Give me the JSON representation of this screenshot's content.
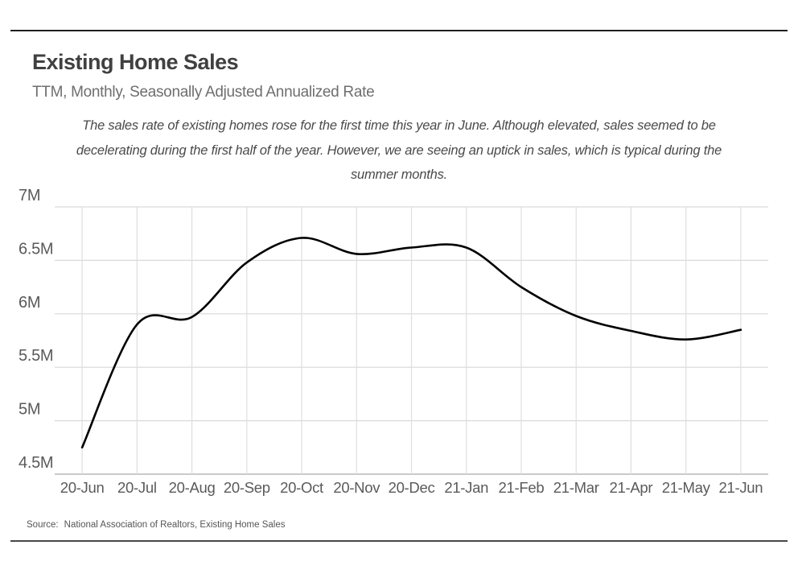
{
  "header": {
    "title": "Existing Home Sales",
    "subtitle": "TTM, Monthly, Seasonally Adjusted Annualized Rate",
    "annotation": "The sales rate of existing homes rose for the first time this year in June. Although elevated, sales seemed to be decelerating during the first half of the year. However, we are seeing an uptick in sales, which is typical during the summer months."
  },
  "chart_data": {
    "type": "line",
    "title": "Existing Home Sales",
    "subtitle": "TTM, Monthly, Seasonally Adjusted Annualized Rate",
    "categories": [
      "20-Jun",
      "20-Jul",
      "20-Aug",
      "20-Sep",
      "20-Oct",
      "20-Nov",
      "20-Dec",
      "21-Jan",
      "21-Feb",
      "21-Mar",
      "21-Apr",
      "21-May",
      "21-Jun"
    ],
    "series": [
      {
        "name": "Existing Home Sales (millions, SAAR)",
        "values": [
          4.75,
          5.9,
          5.97,
          6.48,
          6.71,
          6.56,
          6.62,
          6.62,
          6.25,
          5.98,
          5.84,
          5.76,
          5.85
        ]
      }
    ],
    "ylim": [
      4.5,
      7.0
    ],
    "y_ticks": [
      4.5,
      5.0,
      5.5,
      6.0,
      6.5,
      7.0
    ],
    "y_tick_labels": [
      "4.5M",
      "5M",
      "5.5M",
      "6M",
      "6.5M",
      "7M"
    ],
    "xlabel": "",
    "ylabel": "",
    "grid": true,
    "legend": false,
    "smooth": true,
    "line_color": "#000000",
    "grid_color": "#d9d9d9",
    "axis_line_color": "#ababab",
    "tick_label_color": "#5a5a5a"
  },
  "footer": {
    "source_label": "Source:",
    "source_text": "National Association of Realtors, Existing Home Sales"
  }
}
